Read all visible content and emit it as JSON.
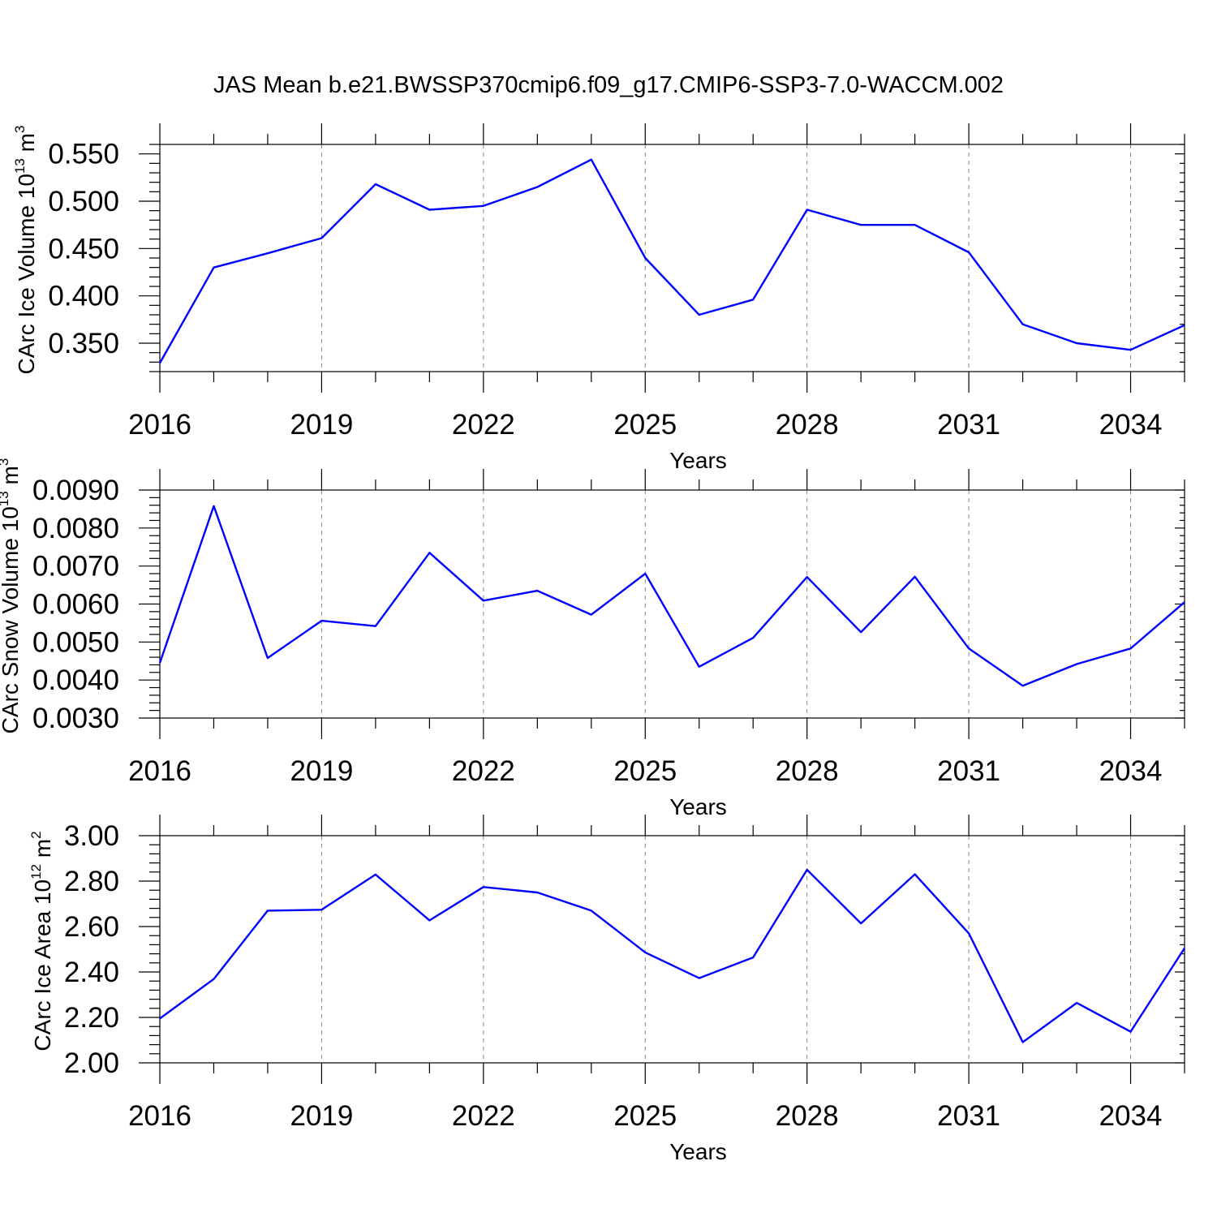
{
  "figure_title": "JAS Mean b.e21.BWSSP370cmip6.f09_g17.CMIP6-SSP3-7.0-WACCM.002",
  "colors": {
    "line": "#0000ff",
    "axis": "#000000",
    "grid": "#888888",
    "background": "#ffffff"
  },
  "chart_data": [
    {
      "type": "line",
      "title": "",
      "xlabel": "Years",
      "ylabel": {
        "base": "CArc Ice Volume 10",
        "exp": "13",
        "unit": " m",
        "unit_exp": "3"
      },
      "xlim": [
        2016,
        2035
      ],
      "ylim": [
        0.32,
        0.56
      ],
      "x_ticks": [
        2016,
        2019,
        2022,
        2025,
        2028,
        2031,
        2034
      ],
      "x_tick_labels": [
        "2016",
        "2019",
        "2022",
        "2025",
        "2028",
        "2031",
        "2034"
      ],
      "y_ticks": [
        0.35,
        0.4,
        0.45,
        0.5,
        0.55
      ],
      "y_tick_labels": [
        "0.350",
        "0.400",
        "0.450",
        "0.500",
        "0.550"
      ],
      "grid": "vertical dashed at major x ticks",
      "series": [
        {
          "x": [
            2016,
            2017,
            2018,
            2019,
            2020,
            2021,
            2022,
            2023,
            2024,
            2025,
            2026,
            2027,
            2028,
            2029,
            2030,
            2031,
            2032,
            2033,
            2034,
            2035
          ],
          "values": [
            0.329,
            0.43,
            0.445,
            0.461,
            0.518,
            0.491,
            0.495,
            0.515,
            0.544,
            0.44,
            0.38,
            0.396,
            0.491,
            0.475,
            0.475,
            0.446,
            0.37,
            0.35,
            0.343,
            0.369
          ]
        }
      ]
    },
    {
      "type": "line",
      "title": "",
      "xlabel": "Years",
      "ylabel": {
        "base": "CArc Snow Volume 10",
        "exp": "13",
        "unit": " m",
        "unit_exp": "3"
      },
      "xlim": [
        2016,
        2035
      ],
      "ylim": [
        0.003,
        0.009
      ],
      "x_ticks": [
        2016,
        2019,
        2022,
        2025,
        2028,
        2031,
        2034
      ],
      "x_tick_labels": [
        "2016",
        "2019",
        "2022",
        "2025",
        "2028",
        "2031",
        "2034"
      ],
      "y_ticks": [
        0.003,
        0.004,
        0.005,
        0.006,
        0.007,
        0.008,
        0.009
      ],
      "y_tick_labels": [
        "0.0030",
        "0.0040",
        "0.0050",
        "0.0060",
        "0.0070",
        "0.0080",
        "0.0090"
      ],
      "grid": "vertical dashed at major x ticks",
      "series": [
        {
          "x": [
            2016,
            2017,
            2018,
            2019,
            2020,
            2021,
            2022,
            2023,
            2024,
            2025,
            2026,
            2027,
            2028,
            2029,
            2030,
            2031,
            2032,
            2033,
            2034,
            2035
          ],
          "values": [
            0.00445,
            0.00858,
            0.00458,
            0.00556,
            0.00542,
            0.00735,
            0.00609,
            0.00635,
            0.00572,
            0.0068,
            0.00435,
            0.00511,
            0.00671,
            0.00526,
            0.00672,
            0.00483,
            0.00385,
            0.00442,
            0.00483,
            0.00605
          ]
        }
      ]
    },
    {
      "type": "line",
      "title": "",
      "xlabel": "Years",
      "ylabel": {
        "base": "CArc Ice Area 10",
        "exp": "12",
        "unit": " m",
        "unit_exp": "2"
      },
      "xlim": [
        2016,
        2035
      ],
      "ylim": [
        2.0,
        3.0
      ],
      "x_ticks": [
        2016,
        2019,
        2022,
        2025,
        2028,
        2031,
        2034
      ],
      "x_tick_labels": [
        "2016",
        "2019",
        "2022",
        "2025",
        "2028",
        "2031",
        "2034"
      ],
      "y_ticks": [
        2.0,
        2.2,
        2.4,
        2.6,
        2.8,
        3.0
      ],
      "y_tick_labels": [
        "2.00",
        "2.20",
        "2.40",
        "2.60",
        "2.80",
        "3.00"
      ],
      "grid": "vertical dashed at major x ticks",
      "series": [
        {
          "x": [
            2016,
            2017,
            2018,
            2019,
            2020,
            2021,
            2022,
            2023,
            2024,
            2025,
            2026,
            2027,
            2028,
            2029,
            2030,
            2031,
            2032,
            2033,
            2034,
            2035
          ],
          "values": [
            2.195,
            2.369,
            2.67,
            2.674,
            2.829,
            2.627,
            2.774,
            2.75,
            2.67,
            2.486,
            2.373,
            2.464,
            2.85,
            2.614,
            2.83,
            2.57,
            2.091,
            2.264,
            2.137,
            2.505
          ]
        }
      ]
    }
  ]
}
